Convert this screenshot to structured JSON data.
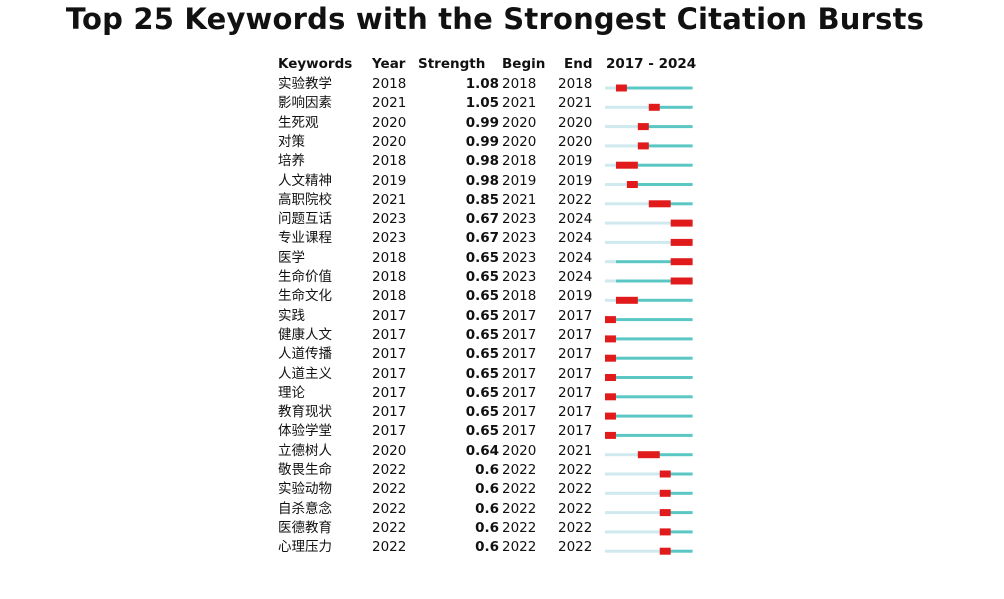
{
  "chart_data": {
    "type": "table",
    "title": "Top 25 Keywords with the Strongest Citation Bursts",
    "columns": [
      "Keywords",
      "Year",
      "Strength",
      "Begin",
      "End",
      "2017 - 2024"
    ],
    "range": [
      2017,
      2024
    ],
    "colors": {
      "burst": "#e11b1b",
      "active": "#5bc7c4",
      "inactive": "#cfe9ee"
    },
    "rows": [
      {
        "keyword": "实验教学",
        "year": "2018",
        "strength": "1.08",
        "begin": "2018",
        "end": "2018"
      },
      {
        "keyword": "影响因素",
        "year": "2021",
        "strength": "1.05",
        "begin": "2021",
        "end": "2021"
      },
      {
        "keyword": "生死观",
        "year": "2020",
        "strength": "0.99",
        "begin": "2020",
        "end": "2020"
      },
      {
        "keyword": "对策",
        "year": "2020",
        "strength": "0.99",
        "begin": "2020",
        "end": "2020"
      },
      {
        "keyword": "培养",
        "year": "2018",
        "strength": "0.98",
        "begin": "2018",
        "end": "2019"
      },
      {
        "keyword": "人文精神",
        "year": "2019",
        "strength": "0.98",
        "begin": "2019",
        "end": "2019"
      },
      {
        "keyword": "高职院校",
        "year": "2021",
        "strength": "0.85",
        "begin": "2021",
        "end": "2022"
      },
      {
        "keyword": "问题互话",
        "year": "2023",
        "strength": "0.67",
        "begin": "2023",
        "end": "2024"
      },
      {
        "keyword": "专业课程",
        "year": "2023",
        "strength": "0.67",
        "begin": "2023",
        "end": "2024"
      },
      {
        "keyword": "医学",
        "year": "2018",
        "strength": "0.65",
        "begin": "2023",
        "end": "2024"
      },
      {
        "keyword": "生命价值",
        "year": "2018",
        "strength": "0.65",
        "begin": "2023",
        "end": "2024"
      },
      {
        "keyword": "生命文化",
        "year": "2018",
        "strength": "0.65",
        "begin": "2018",
        "end": "2019"
      },
      {
        "keyword": "实践",
        "year": "2017",
        "strength": "0.65",
        "begin": "2017",
        "end": "2017"
      },
      {
        "keyword": "健康人文",
        "year": "2017",
        "strength": "0.65",
        "begin": "2017",
        "end": "2017"
      },
      {
        "keyword": "人道传播",
        "year": "2017",
        "strength": "0.65",
        "begin": "2017",
        "end": "2017"
      },
      {
        "keyword": "人道主义",
        "year": "2017",
        "strength": "0.65",
        "begin": "2017",
        "end": "2017"
      },
      {
        "keyword": "理论",
        "year": "2017",
        "strength": "0.65",
        "begin": "2017",
        "end": "2017"
      },
      {
        "keyword": "教育现状",
        "year": "2017",
        "strength": "0.65",
        "begin": "2017",
        "end": "2017"
      },
      {
        "keyword": "体验学堂",
        "year": "2017",
        "strength": "0.65",
        "begin": "2017",
        "end": "2017"
      },
      {
        "keyword": "立德树人",
        "year": "2020",
        "strength": "0.64",
        "begin": "2020",
        "end": "2021"
      },
      {
        "keyword": "敬畏生命",
        "year": "2022",
        "strength": "0.6",
        "begin": "2022",
        "end": "2022"
      },
      {
        "keyword": "实验动物",
        "year": "2022",
        "strength": "0.6",
        "begin": "2022",
        "end": "2022"
      },
      {
        "keyword": "自杀意念",
        "year": "2022",
        "strength": "0.6",
        "begin": "2022",
        "end": "2022"
      },
      {
        "keyword": "医德教育",
        "year": "2022",
        "strength": "0.6",
        "begin": "2022",
        "end": "2022"
      },
      {
        "keyword": "心理压力",
        "year": "2022",
        "strength": "0.6",
        "begin": "2022",
        "end": "2022"
      }
    ]
  }
}
